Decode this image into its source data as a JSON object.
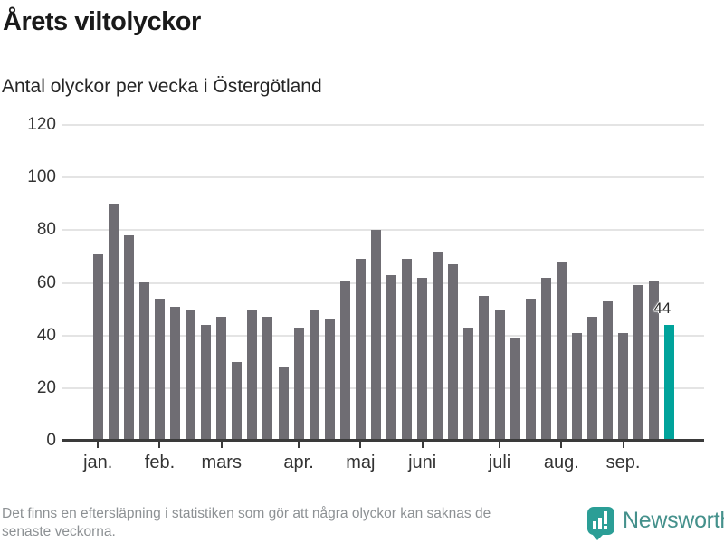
{
  "header": {
    "title": "Årets viltolyckor",
    "subtitle": "Antal olyckor per vecka i Östergötland"
  },
  "chart_data": {
    "type": "bar",
    "title": "Årets viltolyckor",
    "subtitle": "Antal olyckor per vecka i Östergötland",
    "xlabel": "",
    "ylabel": "Antal olyckor per vecka",
    "ylim": [
      0,
      120
    ],
    "y_ticks": [
      0,
      20,
      40,
      60,
      80,
      100,
      120
    ],
    "grid": "horizontal",
    "month_labels": [
      "jan.",
      "feb.",
      "mars",
      "apr.",
      "maj",
      "juni",
      "juli",
      "aug.",
      "sep."
    ],
    "month_tick_bar_index": [
      0,
      4,
      8,
      13,
      17,
      21,
      26,
      30,
      34
    ],
    "values": [
      71,
      90,
      78,
      60,
      54,
      51,
      50,
      44,
      47,
      30,
      50,
      47,
      28,
      43,
      50,
      46,
      61,
      69,
      80,
      63,
      69,
      62,
      72,
      67,
      43,
      55,
      50,
      39,
      54,
      62,
      68,
      41,
      47,
      53,
      41,
      59,
      61,
      44
    ],
    "highlight": {
      "index": 37,
      "label": "44"
    },
    "colors": {
      "bar": "#6f6d73",
      "highlight": "#00a39b",
      "grid": "#e4e4e4",
      "axis": "#3a3a3a",
      "tick_label": "#333333"
    },
    "legend": "none"
  },
  "footer": {
    "note_line1": "Det finns en eftersläpning i statistiken som gör att några olyckor kan saknas de",
    "note_line2": "senaste veckorna.",
    "brand": "Newsworthy",
    "brand_text_color": "#45918c",
    "brand_icon_color": "#2b9e96"
  }
}
